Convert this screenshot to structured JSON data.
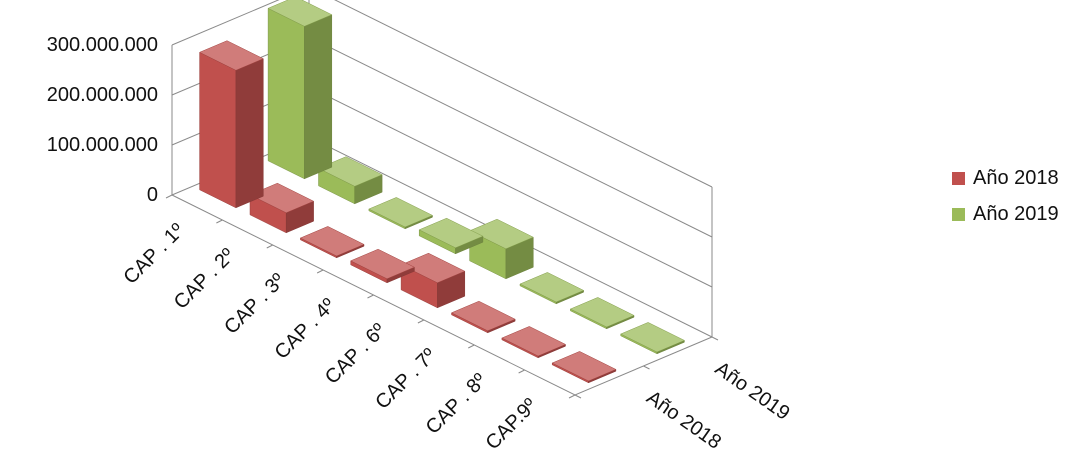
{
  "chart_data": {
    "type": "bar",
    "variant": "3d-column",
    "title": "",
    "categories": [
      "CAP . 1º",
      "CAP . 2º",
      "CAP . 3º",
      "CAP . 4º",
      "CAP . 6º",
      "CAP . 7º",
      "CAP . 8º",
      "CAP.9º"
    ],
    "series": [
      {
        "name": "Año 2018",
        "color": "#c0504d",
        "values": [
          275000000,
          40000000,
          3000000,
          8000000,
          50000000,
          4000000,
          3000000,
          3000000
        ]
      },
      {
        "name": "Año 2019",
        "color": "#9bbb59",
        "values": [
          305000000,
          35000000,
          3000000,
          12000000,
          60000000,
          2000000,
          2000000,
          2000000
        ]
      }
    ],
    "y_ticks": [
      "0",
      "100.000.000",
      "200.000.000",
      "300.000.000"
    ],
    "ylim": [
      0,
      300000000
    ],
    "legend_position": "right",
    "grid": true
  }
}
